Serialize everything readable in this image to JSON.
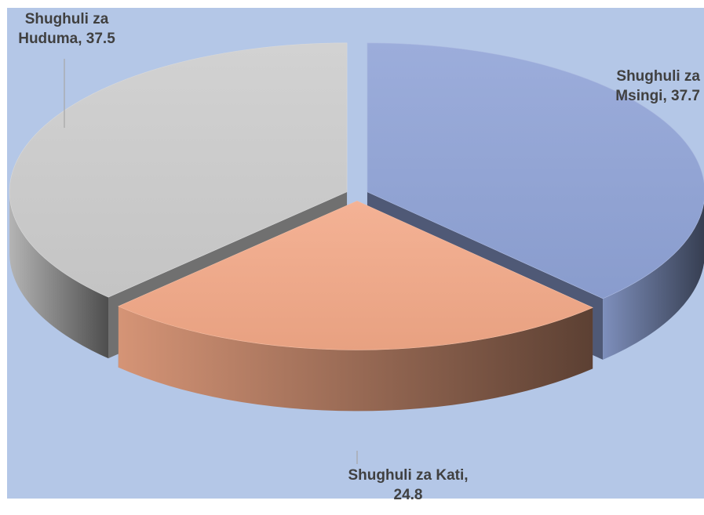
{
  "chart_data": {
    "type": "pie",
    "title": "",
    "style": "3d-exploded",
    "plot_background": "#b4c7e7",
    "slices": [
      {
        "name": "Shughuli za Msingi",
        "value": 37.7,
        "label_lines": [
          "Shughuli za",
          "Msingi, 37.7"
        ],
        "color": "#8fa2d6"
      },
      {
        "name": "Shughuli za Kati",
        "value": 24.8,
        "label_lines": [
          "Shughuli za Kati,",
          "24.8"
        ],
        "color": "#f2a886"
      },
      {
        "name": "Shughuli za Huduma",
        "value": 37.5,
        "label_lines": [
          "Shughuli za",
          "Huduma, 37.5"
        ],
        "color": "#cccccc"
      }
    ]
  }
}
